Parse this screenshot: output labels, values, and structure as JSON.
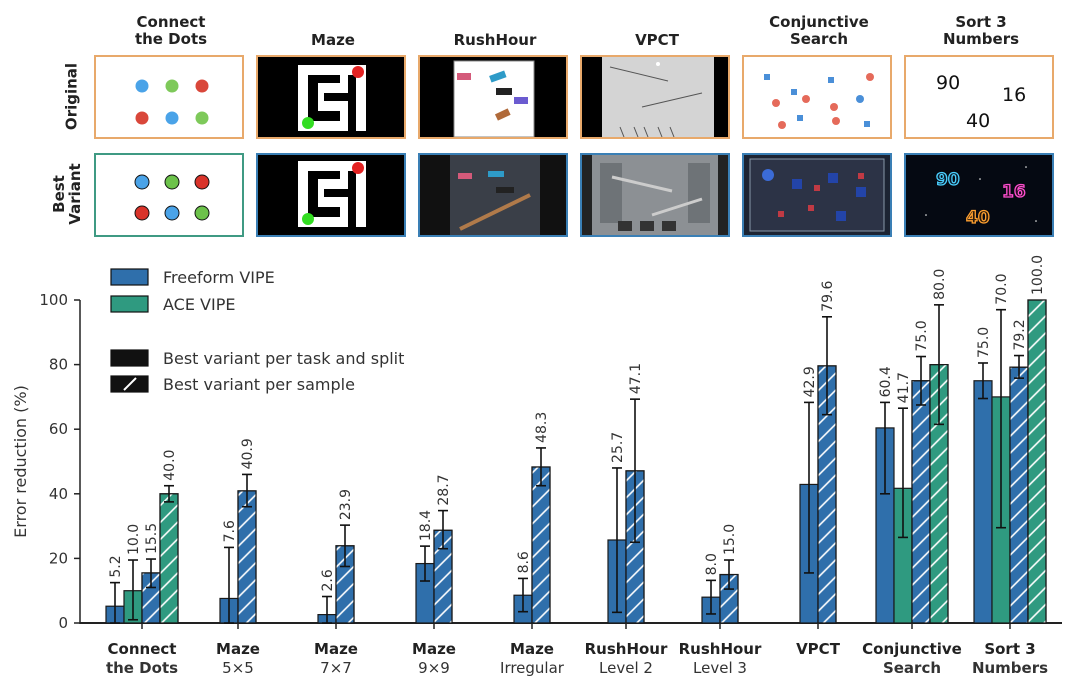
{
  "thumbnails": {
    "row_labels": [
      "Original",
      "Best Variant"
    ],
    "titles": [
      [
        "Connect",
        "the Dots"
      ],
      [
        "Maze"
      ],
      [
        "RushHour"
      ],
      [
        "VPCT"
      ],
      [
        "Conjunctive",
        "Search"
      ],
      [
        "Sort 3",
        "Numbers"
      ]
    ],
    "sort_numbers": [
      "90",
      "16",
      "40"
    ]
  },
  "colors": {
    "freeform": "#2f6fab",
    "ace": "#2f9a80",
    "original_border": "#e8a96b",
    "best_border_blue": "#3a7fb5",
    "best_border_green": "#3f9a83"
  },
  "chart_data": {
    "type": "bar",
    "ylabel": "Error reduction (%)",
    "ylim": [
      0,
      100
    ],
    "yticks": [
      0,
      20,
      40,
      60,
      80,
      100
    ],
    "grid": false,
    "legend": [
      {
        "label": "Freeform VIPE",
        "style": "freeform"
      },
      {
        "label": "ACE VIPE",
        "style": "ace"
      },
      {
        "label": "Best variant per task and split",
        "style": "solid"
      },
      {
        "label": "Best variant per sample",
        "style": "hatched"
      }
    ],
    "groups": [
      {
        "line1": "Connect",
        "line2": "the Dots",
        "line2_bold": true,
        "bars": [
          {
            "method": "freeform",
            "hatched": false,
            "value": 5.2,
            "label": "5.2",
            "err": [
              0,
              12.5
            ]
          },
          {
            "method": "ace",
            "hatched": false,
            "value": 10.0,
            "label": "10.0",
            "err": [
              1,
              19.5
            ]
          },
          {
            "method": "freeform",
            "hatched": true,
            "value": 15.5,
            "label": "15.5",
            "err": [
              11,
              19.8
            ]
          },
          {
            "method": "ace",
            "hatched": true,
            "value": 40.0,
            "label": "40.0",
            "err": [
              37.5,
              42.5
            ]
          }
        ]
      },
      {
        "line1": "Maze",
        "line2": "5×5",
        "line2_bold": false,
        "bars": [
          {
            "method": "freeform",
            "hatched": false,
            "value": 7.6,
            "label": "7.6",
            "err": [
              0,
              23.4
            ]
          },
          {
            "method": "freeform",
            "hatched": true,
            "value": 40.9,
            "label": "40.9",
            "err": [
              36,
              46
            ]
          }
        ]
      },
      {
        "line1": "Maze",
        "line2": "7×7",
        "line2_bold": false,
        "bars": [
          {
            "method": "freeform",
            "hatched": false,
            "value": 2.6,
            "label": "2.6",
            "err": [
              0,
              8.2
            ]
          },
          {
            "method": "freeform",
            "hatched": true,
            "value": 23.9,
            "label": "23.9",
            "err": [
              17.5,
              30.3
            ]
          }
        ]
      },
      {
        "line1": "Maze",
        "line2": "9×9",
        "line2_bold": false,
        "bars": [
          {
            "method": "freeform",
            "hatched": false,
            "value": 18.4,
            "label": "18.4",
            "err": [
              13,
              23.8
            ]
          },
          {
            "method": "freeform",
            "hatched": true,
            "value": 28.7,
            "label": "28.7",
            "err": [
              23,
              34.8
            ]
          }
        ]
      },
      {
        "line1": "Maze",
        "line2": "Irregular",
        "line2_bold": false,
        "bars": [
          {
            "method": "freeform",
            "hatched": false,
            "value": 8.6,
            "label": "8.6",
            "err": [
              3.5,
              13.8
            ]
          },
          {
            "method": "freeform",
            "hatched": true,
            "value": 48.3,
            "label": "48.3",
            "err": [
              42.5,
              54.2
            ]
          }
        ]
      },
      {
        "line1": "RushHour",
        "line2": "Level 2",
        "line2_bold": false,
        "bars": [
          {
            "method": "freeform",
            "hatched": false,
            "value": 25.7,
            "label": "25.7",
            "err": [
              3.3,
              48
            ]
          },
          {
            "method": "freeform",
            "hatched": true,
            "value": 47.1,
            "label": "47.1",
            "err": [
              25,
              69.3
            ]
          }
        ]
      },
      {
        "line1": "RushHour",
        "line2": "Level 3",
        "line2_bold": false,
        "bars": [
          {
            "method": "freeform",
            "hatched": false,
            "value": 8.0,
            "label": "8.0",
            "err": [
              2.8,
              13.2
            ]
          },
          {
            "method": "freeform",
            "hatched": true,
            "value": 15.0,
            "label": "15.0",
            "err": [
              10.5,
              19.5
            ]
          }
        ]
      },
      {
        "line1": "VPCT",
        "line2": "",
        "line2_bold": false,
        "bars": [
          {
            "method": "freeform",
            "hatched": false,
            "value": 42.9,
            "label": "42.9",
            "err": [
              15.5,
              68.3
            ]
          },
          {
            "method": "freeform",
            "hatched": true,
            "value": 79.6,
            "label": "79.6",
            "err": [
              64.5,
              94.8
            ]
          }
        ]
      },
      {
        "line1": "Conjunctive",
        "line2": "Search",
        "line2_bold": true,
        "bars": [
          {
            "method": "freeform",
            "hatched": false,
            "value": 60.4,
            "label": "60.4",
            "err": [
              40,
              68.3
            ]
          },
          {
            "method": "ace",
            "hatched": false,
            "value": 41.7,
            "label": "41.7",
            "err": [
              26.5,
              66.5
            ]
          },
          {
            "method": "freeform",
            "hatched": true,
            "value": 75.0,
            "label": "75.0",
            "err": [
              67.5,
              82.5
            ]
          },
          {
            "method": "ace",
            "hatched": true,
            "value": 80.0,
            "label": "80.0",
            "err": [
              61.5,
              98.5
            ]
          }
        ]
      },
      {
        "line1": "Sort 3",
        "line2": "Numbers",
        "line2_bold": true,
        "bars": [
          {
            "method": "freeform",
            "hatched": false,
            "value": 75.0,
            "label": "75.0",
            "err": [
              69.5,
              80.5
            ]
          },
          {
            "method": "ace",
            "hatched": false,
            "value": 70.0,
            "label": "70.0",
            "err": [
              29.5,
              97
            ]
          },
          {
            "method": "freeform",
            "hatched": true,
            "value": 79.2,
            "label": "79.2",
            "err": [
              75.8,
              82.8
            ]
          },
          {
            "method": "ace",
            "hatched": true,
            "value": 100.0,
            "label": "100.0",
            "err": null
          }
        ]
      }
    ]
  }
}
